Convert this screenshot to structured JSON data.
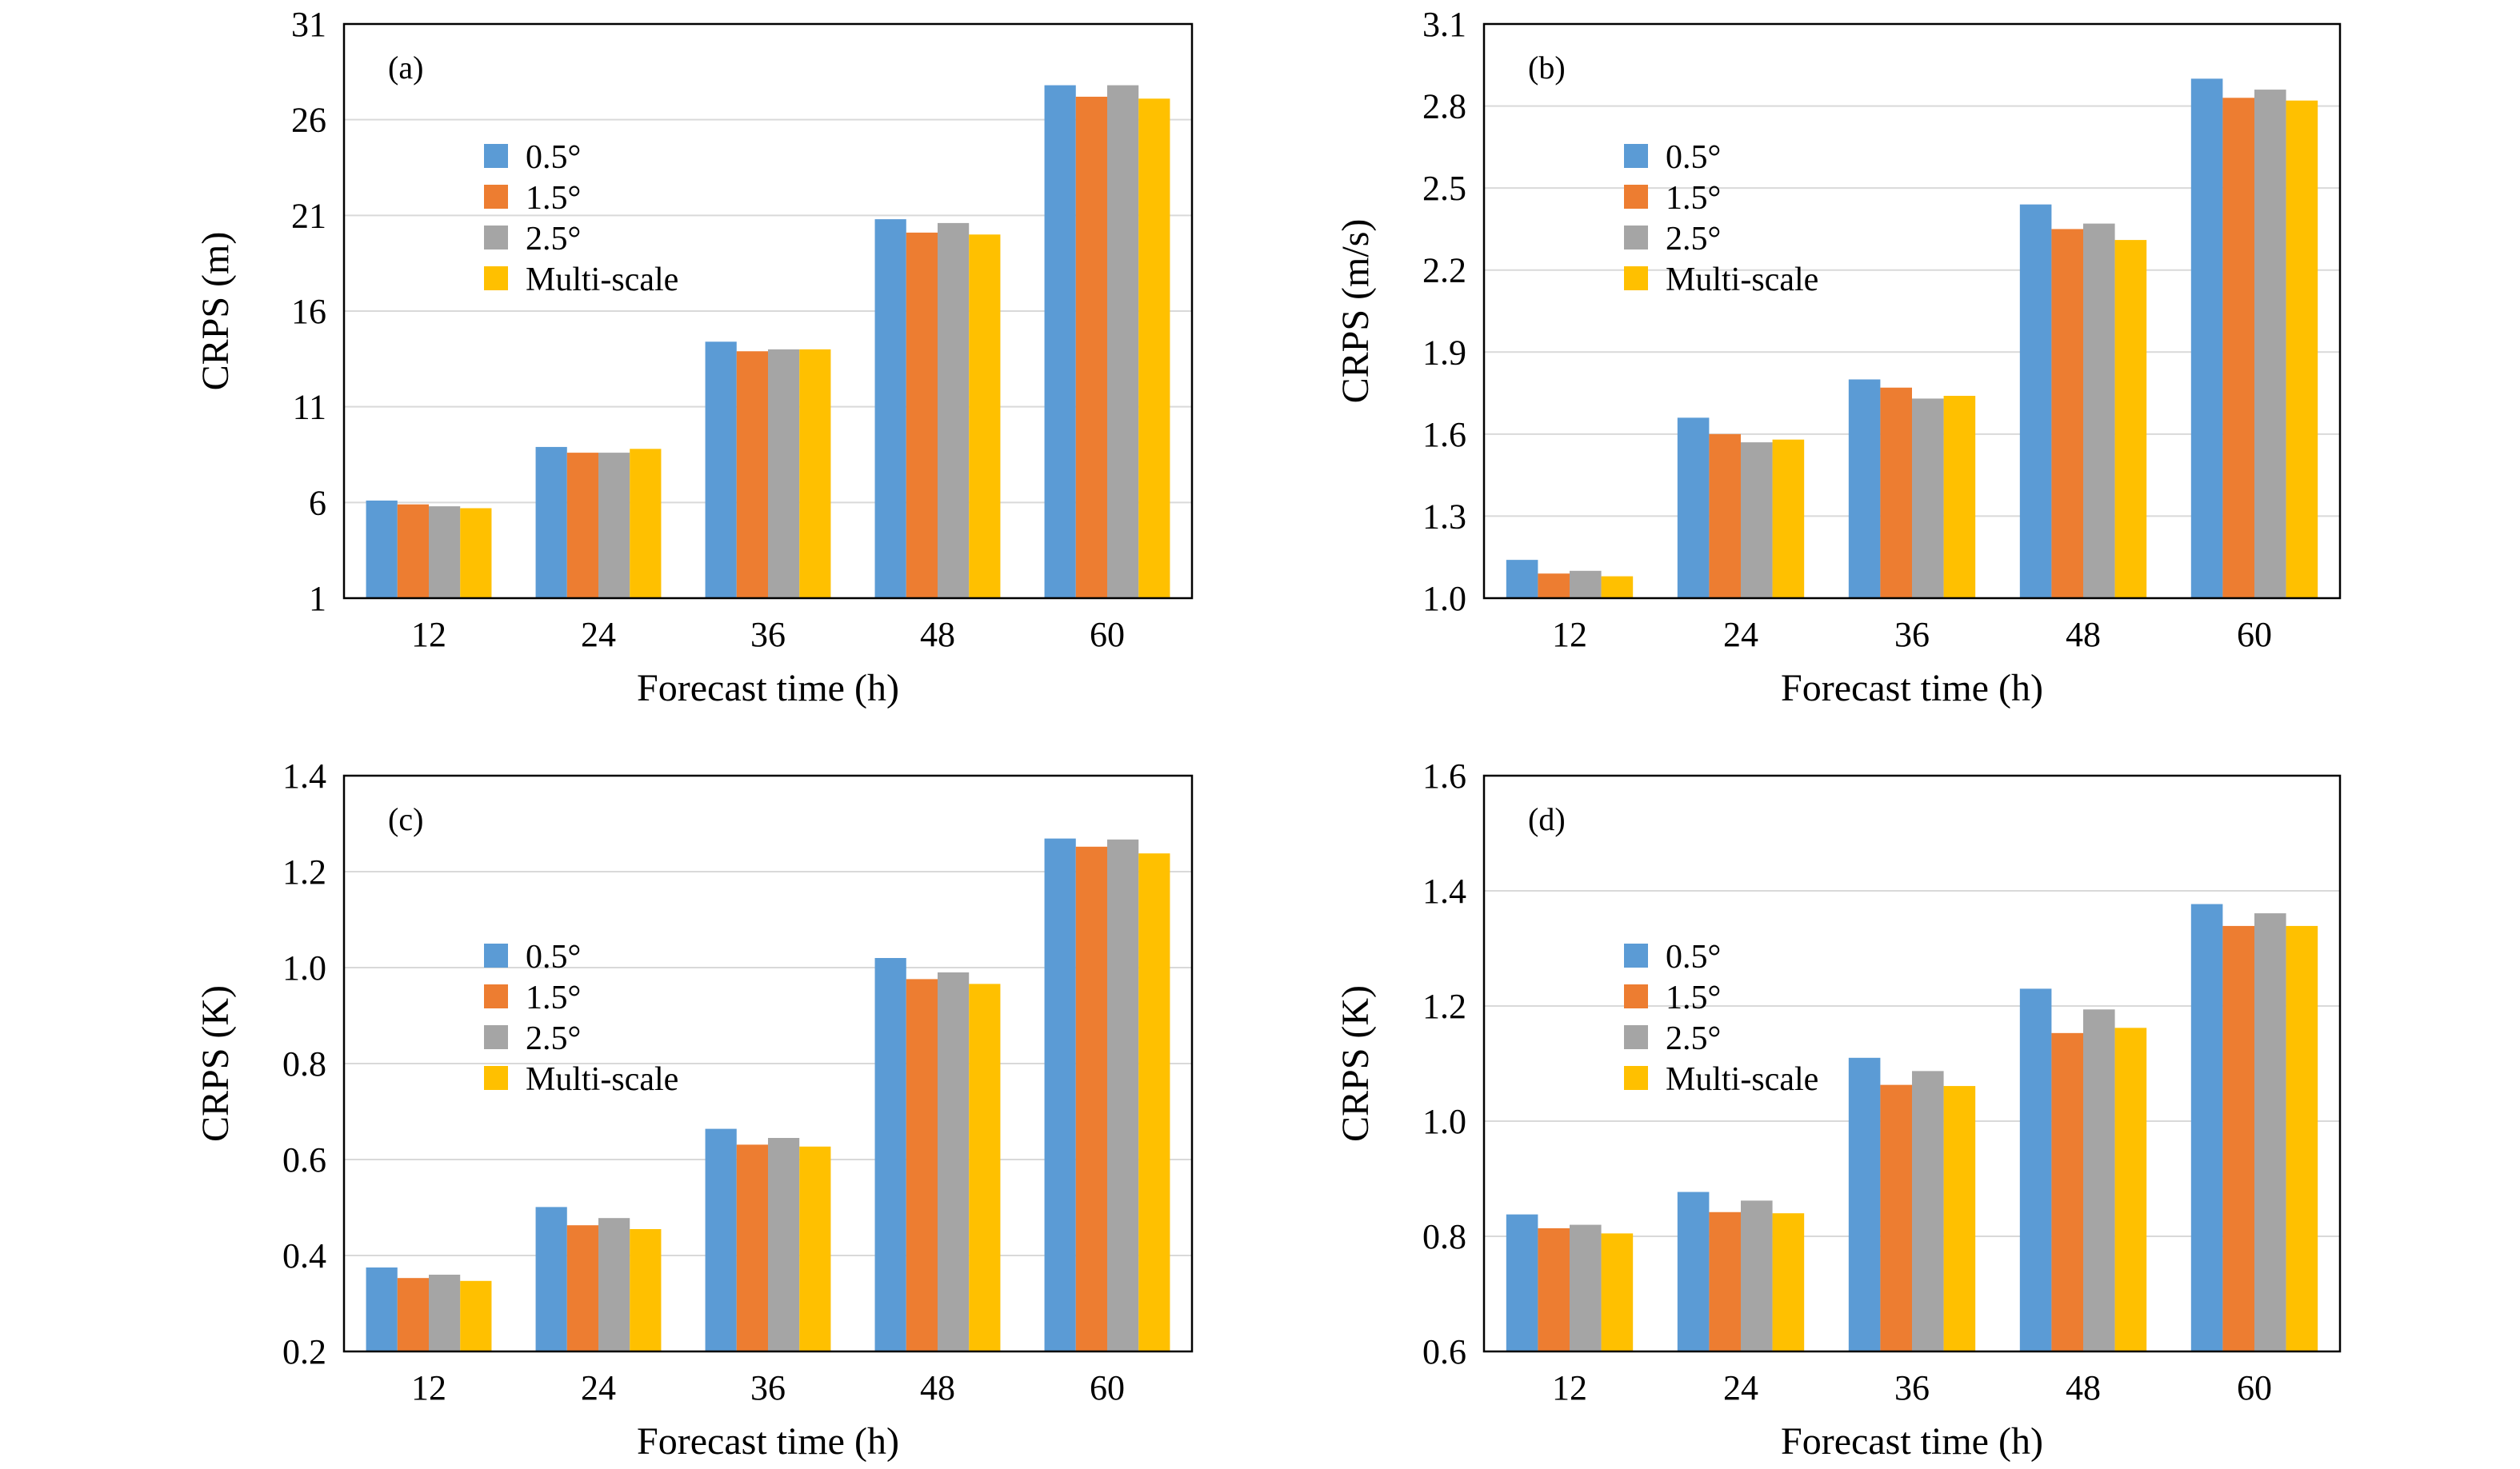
{
  "chart_data": [
    {
      "type": "bar",
      "panel_label": "(a)",
      "xlabel": "Forecast time (h)",
      "ylabel": "CRPS (m)",
      "categories": [
        "12",
        "24",
        "36",
        "48",
        "60"
      ],
      "ylim": [
        1,
        31
      ],
      "yticks": [
        "1",
        "6",
        "11",
        "16",
        "21",
        "26",
        "31"
      ],
      "grid": true,
      "legend_position": "upper-left",
      "series": [
        {
          "name": "0.5°",
          "values": [
            6.1,
            8.9,
            14.4,
            20.8,
            27.8
          ]
        },
        {
          "name": "1.5°",
          "values": [
            5.9,
            8.6,
            13.9,
            20.1,
            27.2
          ]
        },
        {
          "name": "2.5°",
          "values": [
            5.8,
            8.6,
            14.0,
            20.6,
            27.8
          ]
        },
        {
          "name": "Multi-scale",
          "values": [
            5.7,
            8.8,
            14.0,
            20.0,
            27.1
          ]
        }
      ]
    },
    {
      "type": "bar",
      "panel_label": "(b)",
      "xlabel": "Forecast time (h)",
      "ylabel": "CRPS (m/s)",
      "categories": [
        "12",
        "24",
        "36",
        "48",
        "60"
      ],
      "ylim": [
        1.0,
        3.1
      ],
      "yticks": [
        "1.0",
        "1.3",
        "1.6",
        "1.9",
        "2.2",
        "2.5",
        "2.8",
        "3.1"
      ],
      "grid": true,
      "legend_position": "upper-left",
      "series": [
        {
          "name": "0.5°",
          "values": [
            1.14,
            1.66,
            1.8,
            2.44,
            2.9
          ]
        },
        {
          "name": "1.5°",
          "values": [
            1.09,
            1.6,
            1.77,
            2.35,
            2.83
          ]
        },
        {
          "name": "2.5°",
          "values": [
            1.1,
            1.57,
            1.73,
            2.37,
            2.86
          ]
        },
        {
          "name": "Multi-scale",
          "values": [
            1.08,
            1.58,
            1.74,
            2.31,
            2.82
          ]
        }
      ]
    },
    {
      "type": "bar",
      "panel_label": "(c)",
      "xlabel": "Forecast time (h)",
      "ylabel": "CRPS (K)",
      "categories": [
        "12",
        "24",
        "36",
        "48",
        "60"
      ],
      "ylim": [
        0.2,
        1.4
      ],
      "yticks": [
        "0.2",
        "0.4",
        "0.6",
        "0.8",
        "1.0",
        "1.2",
        "1.4"
      ],
      "grid": true,
      "legend_position": "middle-left",
      "series": [
        {
          "name": "0.5°",
          "values": [
            0.375,
            0.501,
            0.664,
            1.02,
            1.269
          ]
        },
        {
          "name": "1.5°",
          "values": [
            0.353,
            0.463,
            0.631,
            0.976,
            1.252
          ]
        },
        {
          "name": "2.5°",
          "values": [
            0.36,
            0.478,
            0.645,
            0.99,
            1.267
          ]
        },
        {
          "name": "Multi-scale",
          "values": [
            0.347,
            0.455,
            0.627,
            0.966,
            1.238
          ]
        }
      ]
    },
    {
      "type": "bar",
      "panel_label": "(d)",
      "xlabel": "Forecast time (h)",
      "ylabel": "CRPS (K)",
      "categories": [
        "12",
        "24",
        "36",
        "48",
        "60"
      ],
      "ylim": [
        0.6,
        1.6
      ],
      "yticks": [
        "0.6",
        "0.8",
        "1.0",
        "1.2",
        "1.4",
        "1.6"
      ],
      "grid": true,
      "legend_position": "middle-left",
      "series": [
        {
          "name": "0.5°",
          "values": [
            0.838,
            0.877,
            1.11,
            1.23,
            1.377
          ]
        },
        {
          "name": "1.5°",
          "values": [
            0.814,
            0.842,
            1.063,
            1.153,
            1.339
          ]
        },
        {
          "name": "2.5°",
          "values": [
            0.82,
            0.862,
            1.087,
            1.194,
            1.361
          ]
        },
        {
          "name": "Multi-scale",
          "values": [
            0.805,
            0.84,
            1.061,
            1.162,
            1.339
          ]
        }
      ]
    }
  ],
  "colors": {
    "series": [
      "#5B9BD5",
      "#ED7D31",
      "#A5A5A5",
      "#FFC000"
    ],
    "grid": "#D9D9D9",
    "axis": "#000000"
  }
}
